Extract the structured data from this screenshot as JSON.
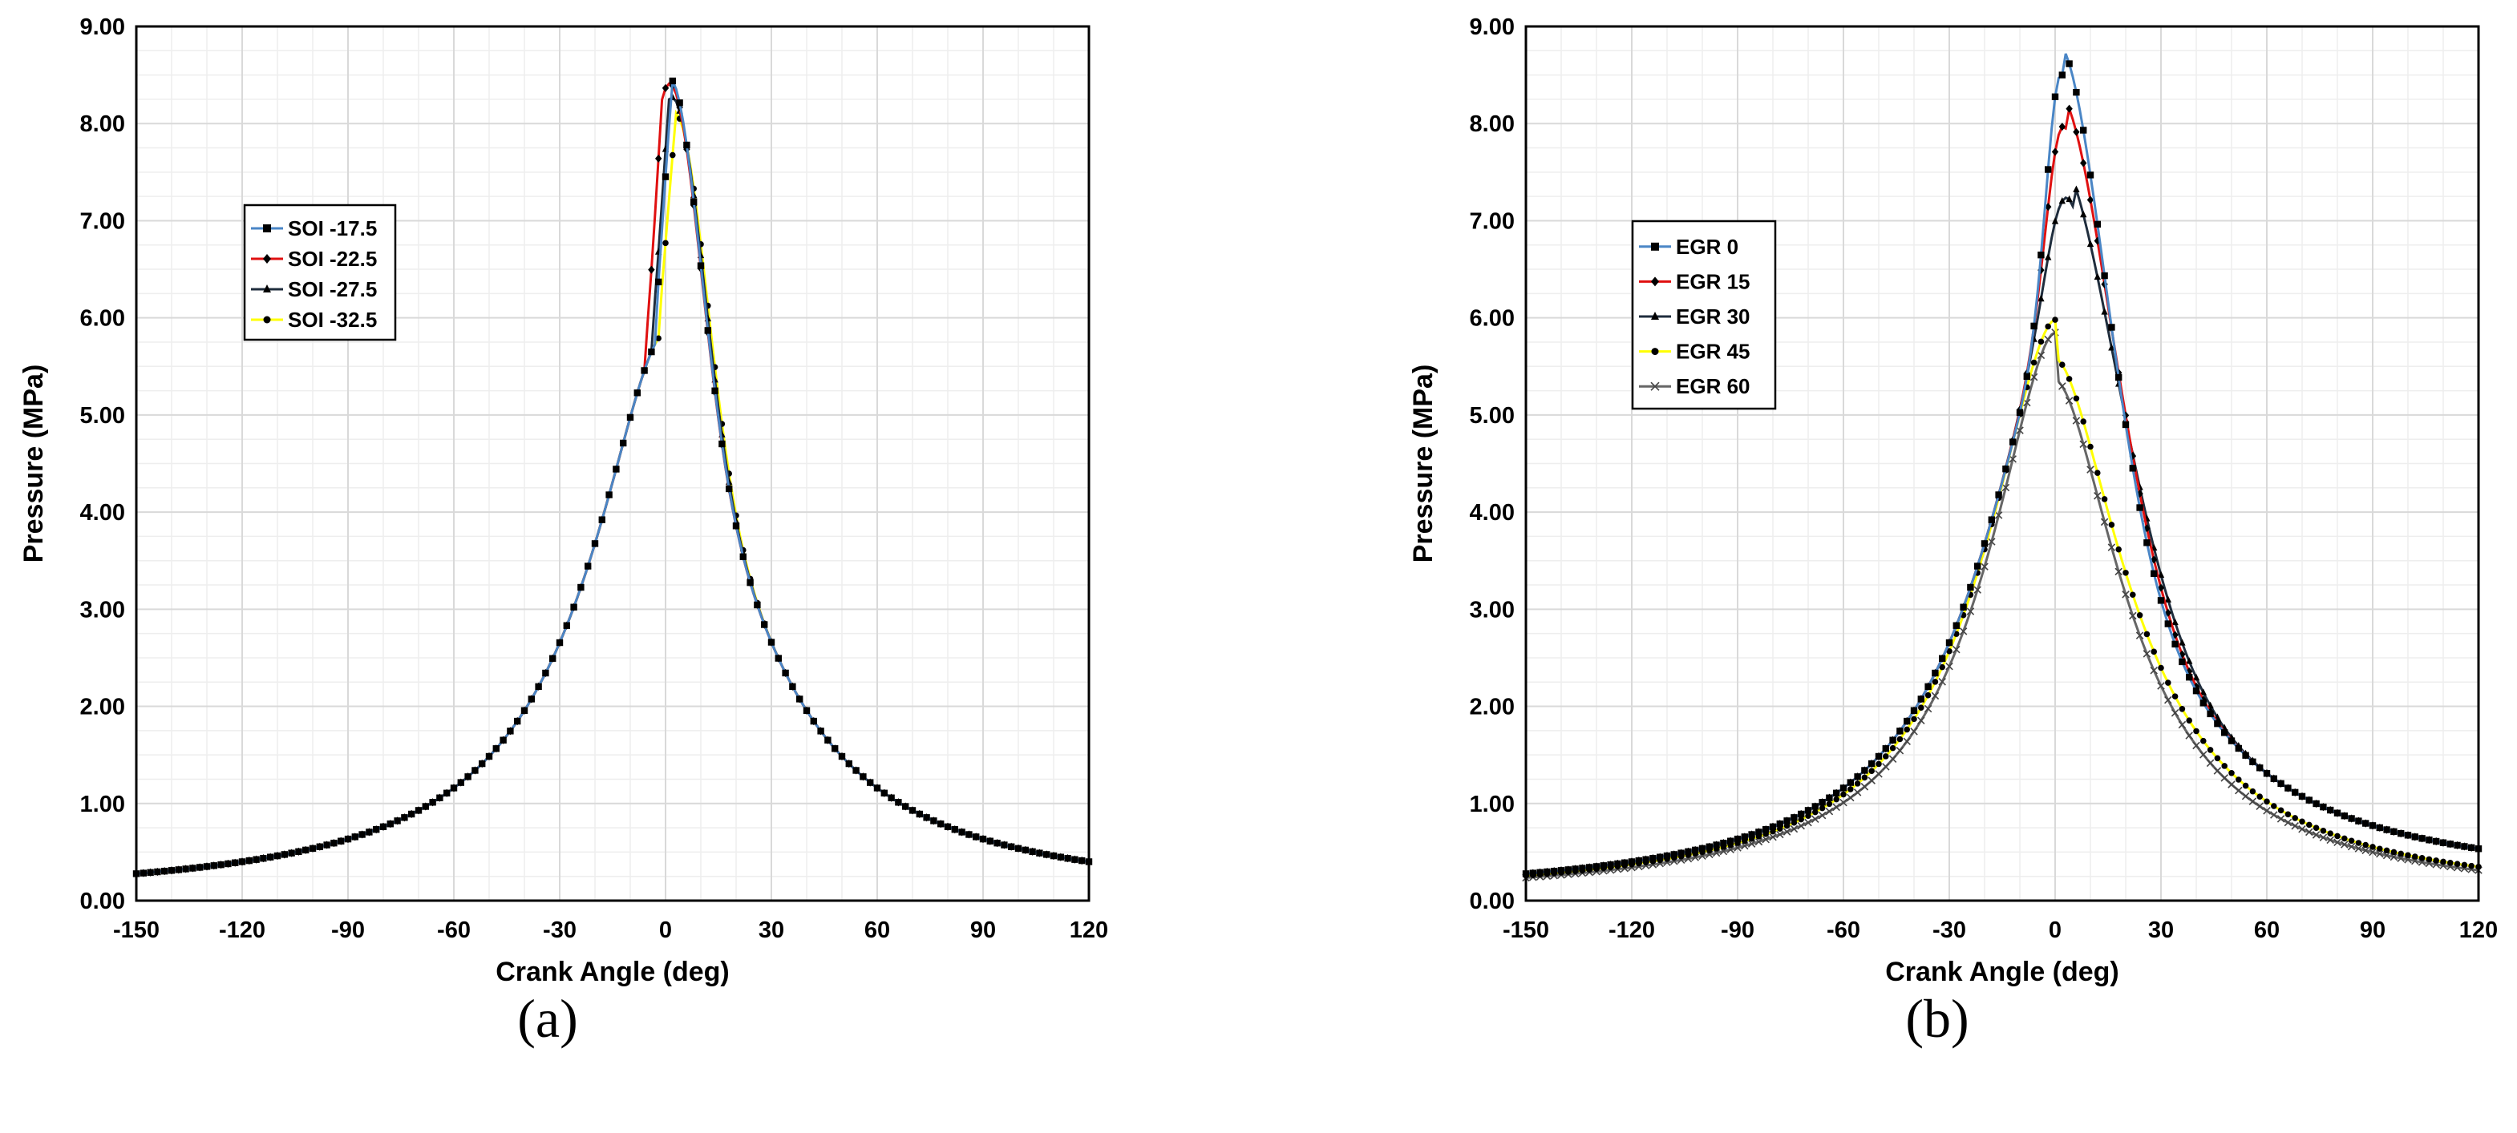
{
  "colors": {
    "c1": "#4a86c6",
    "c2": "#e01010",
    "c3": "#1f2d3d",
    "c4": "#ffff00",
    "c5": "#666666",
    "marker": "#000000",
    "grid": "#d9d9d9",
    "gridMinor": "#eeeeee"
  },
  "chart_data": [
    {
      "type": "line",
      "panel_label": "(a)",
      "title": "",
      "xlabel": "Crank Angle (deg)",
      "ylabel": "Pressure (MPa)",
      "xlim": [
        -150,
        120
      ],
      "ylim": [
        0,
        9
      ],
      "x_ticks": [
        "-150",
        "-120",
        "-90",
        "-60",
        "-30",
        "0",
        "30",
        "60",
        "90",
        "120"
      ],
      "y_ticks": [
        "0.00",
        "1.00",
        "2.00",
        "3.00",
        "4.00",
        "5.00",
        "6.00",
        "7.00",
        "8.00",
        "9.00"
      ],
      "legend_position": "upper-left",
      "series": [
        {
          "name": "SOI -17.5",
          "color": "c1",
          "marker": "square",
          "peak": 8.5,
          "peak_x": 2,
          "rise_x": -2
        },
        {
          "name": "SOI -22.5",
          "color": "c2",
          "marker": "diamond",
          "peak": 8.45,
          "peak_x": 2,
          "rise_x": -5
        },
        {
          "name": "SOI -27.5",
          "color": "c3",
          "marker": "triangle",
          "peak": 8.35,
          "peak_x": 3,
          "rise_x": -3
        },
        {
          "name": "SOI -32.5",
          "color": "c4",
          "marker": "circle",
          "peak": 8.25,
          "peak_x": 4,
          "rise_x": -1
        }
      ]
    },
    {
      "type": "line",
      "panel_label": "(b)",
      "title": "",
      "xlabel": "Crank Angle (deg)",
      "ylabel": "Pressure (MPa)",
      "xlim": [
        -150,
        120
      ],
      "ylim": [
        0,
        9
      ],
      "x_ticks": [
        "-150",
        "-120",
        "-90",
        "-60",
        "-30",
        "0",
        "30",
        "60",
        "90",
        "120"
      ],
      "y_ticks": [
        "0.00",
        "1.00",
        "2.00",
        "3.00",
        "4.00",
        "5.00",
        "6.00",
        "7.00",
        "8.00",
        "9.00"
      ],
      "legend_position": "upper-left",
      "series": [
        {
          "name": "EGR 0",
          "color": "c1",
          "marker": "square",
          "peak": 8.5,
          "peak_x": 2,
          "end": 0.45
        },
        {
          "name": "EGR 15",
          "color": "c2",
          "marker": "diamond",
          "peak": 7.95,
          "peak_x": 3,
          "end": 0.43
        },
        {
          "name": "EGR 30",
          "color": "c3",
          "marker": "triangle",
          "peak": 7.15,
          "peak_x": 5,
          "end": 0.42
        },
        {
          "name": "EGR 45",
          "color": "c4",
          "marker": "circle",
          "peak": 5.98,
          "peak_x": 0,
          "end": 0.33
        },
        {
          "name": "EGR 60",
          "color": "c5",
          "marker": "cross",
          "peak": 5.85,
          "peak_x": 0,
          "end": 0.3
        }
      ]
    }
  ]
}
